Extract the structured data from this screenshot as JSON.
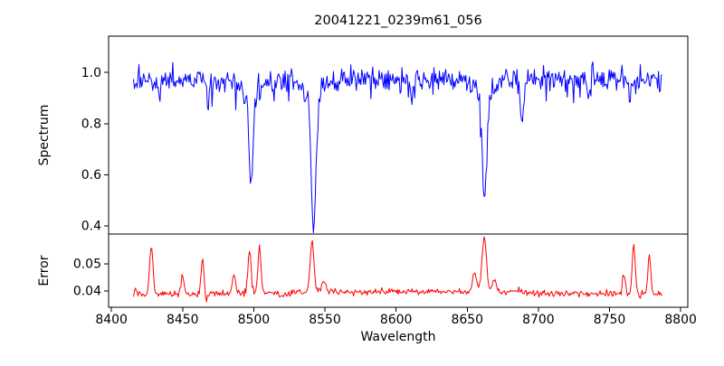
{
  "figure": {
    "title": "20041221_0239m61_056",
    "xlabel": "Wavelength",
    "background_color": "#ffffff",
    "text_color": "#000000",
    "spine_color": "#000000"
  },
  "chart_data": [
    {
      "type": "line",
      "name": "spectrum",
      "title": "20041221_0239m61_056",
      "xlabel": "Wavelength",
      "ylabel": "Spectrum",
      "line_color": "#0000ff",
      "grid": false,
      "legend": "none",
      "xlim": [
        8398,
        8805
      ],
      "ylim": [
        0.368,
        1.142
      ],
      "yticks": [
        {
          "value": 0.4,
          "label": "0.4"
        },
        {
          "value": 0.6,
          "label": "0.6"
        },
        {
          "value": 0.8,
          "label": "0.8"
        },
        {
          "value": 1.0,
          "label": "1.0"
        }
      ],
      "x_data_range": [
        8415.5,
        8787
      ],
      "n_points": 580,
      "continuum_level": 0.972,
      "noise_sigma": 0.025,
      "noise_seed": 20041221,
      "absorption_lines": [
        {
          "center": 8434.0,
          "depth": 0.09,
          "sigma": 0.9
        },
        {
          "center": 8468.0,
          "depth": 0.13,
          "sigma": 0.8
        },
        {
          "center": 8498.0,
          "depth": 0.36,
          "sigma": 1.3,
          "wing_depth": 0.075,
          "wing_sigma": 4.5,
          "core_flux": 0.55
        },
        {
          "center": 8514.0,
          "depth": 0.06,
          "sigma": 0.8
        },
        {
          "center": 8542.1,
          "depth": 0.52,
          "sigma": 1.6,
          "wing_depth": 0.08,
          "wing_sigma": 5.5,
          "core_flux": 0.39
        },
        {
          "center": 8611.0,
          "depth": 0.1,
          "sigma": 0.9
        },
        {
          "center": 8662.1,
          "depth": 0.4,
          "sigma": 1.6,
          "wing_depth": 0.08,
          "wing_sigma": 5.0,
          "core_flux": 0.5
        },
        {
          "center": 8688.5,
          "depth": 0.16,
          "sigma": 1.1,
          "core_flux": 0.81
        },
        {
          "center": 8735.0,
          "depth": 0.1,
          "sigma": 0.9
        },
        {
          "center": 8764.0,
          "depth": 0.09,
          "sigma": 0.8
        }
      ]
    },
    {
      "type": "line",
      "name": "error",
      "xlabel": "Wavelength",
      "ylabel": "Error",
      "line_color": "#ff0000",
      "grid": false,
      "legend": "none",
      "xlim": [
        8398,
        8805
      ],
      "ylim": [
        0.034,
        0.061
      ],
      "yticks": [
        {
          "value": 0.04,
          "label": "0.04"
        },
        {
          "value": 0.05,
          "label": "0.05"
        }
      ],
      "xticks": [
        {
          "value": 8400,
          "label": "8400"
        },
        {
          "value": 8450,
          "label": "8450"
        },
        {
          "value": 8500,
          "label": "8500"
        },
        {
          "value": 8550,
          "label": "8550"
        },
        {
          "value": 8600,
          "label": "8600"
        },
        {
          "value": 8650,
          "label": "8650"
        },
        {
          "value": 8700,
          "label": "8700"
        },
        {
          "value": 8750,
          "label": "8750"
        },
        {
          "value": 8800,
          "label": "8800"
        }
      ],
      "x_data_range": [
        8415.5,
        8787
      ],
      "n_points": 580,
      "baseline_level": 0.0382,
      "baseline_bump": {
        "center": 8615,
        "amplitude": 0.0016,
        "sigma": 115
      },
      "noise_sigma": 0.00055,
      "noise_seed": 8542,
      "peaks": [
        {
          "center": 8417.0,
          "amplitude": 0.003,
          "sigma": 0.7
        },
        {
          "center": 8428.0,
          "amplitude": 0.018,
          "sigma": 1.2
        },
        {
          "center": 8450.0,
          "amplitude": 0.0075,
          "sigma": 1.0
        },
        {
          "center": 8464.0,
          "amplitude": 0.013,
          "sigma": 1.0
        },
        {
          "center": 8466.5,
          "amplitude": -0.003,
          "sigma": 0.8
        },
        {
          "center": 8486.0,
          "amplitude": 0.006,
          "sigma": 1.2
        },
        {
          "center": 8497.0,
          "amplitude": 0.016,
          "sigma": 1.1
        },
        {
          "center": 8504.0,
          "amplitude": 0.0155,
          "sigma": 1.1
        },
        {
          "center": 8520.0,
          "amplitude": -0.0015,
          "sigma": 2.0
        },
        {
          "center": 8541.0,
          "amplitude": 0.019,
          "sigma": 1.3
        },
        {
          "center": 8549.0,
          "amplitude": 0.004,
          "sigma": 1.5
        },
        {
          "center": 8655.0,
          "amplitude": 0.007,
          "sigma": 1.5
        },
        {
          "center": 8662.0,
          "amplitude": 0.0198,
          "sigma": 1.6
        },
        {
          "center": 8669.0,
          "amplitude": 0.005,
          "sigma": 1.5
        },
        {
          "center": 8760.0,
          "amplitude": 0.008,
          "sigma": 0.9
        },
        {
          "center": 8767.0,
          "amplitude": 0.0185,
          "sigma": 1.0
        },
        {
          "center": 8778.0,
          "amplitude": 0.0145,
          "sigma": 1.0
        }
      ]
    }
  ]
}
